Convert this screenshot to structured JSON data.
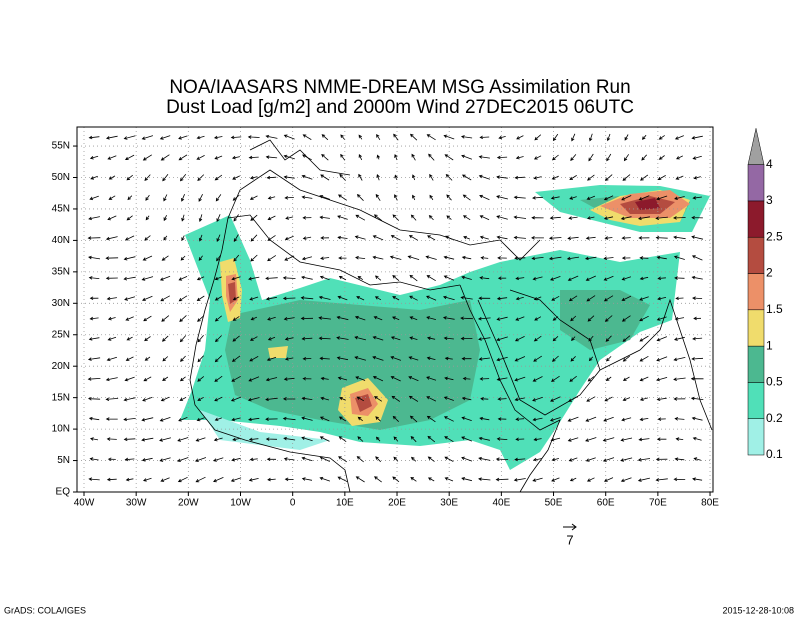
{
  "header": {
    "title_line1": "NOA/IAASARS NMME-DREAM MSG Assimilation Run",
    "title_line2": "Dust Load [g/m2] and 2000m Wind 27DEC2015 06UTC"
  },
  "map": {
    "lon_ticks": [
      {
        "value": -40,
        "label": "40W"
      },
      {
        "value": -30,
        "label": "30W"
      },
      {
        "value": -20,
        "label": "20W"
      },
      {
        "value": -10,
        "label": "10W"
      },
      {
        "value": 0,
        "label": "0"
      },
      {
        "value": 10,
        "label": "10E"
      },
      {
        "value": 20,
        "label": "20E"
      },
      {
        "value": 30,
        "label": "30E"
      },
      {
        "value": 40,
        "label": "40E"
      },
      {
        "value": 50,
        "label": "50E"
      },
      {
        "value": 60,
        "label": "60E"
      },
      {
        "value": 70,
        "label": "70E"
      },
      {
        "value": 80,
        "label": "80E"
      }
    ],
    "lat_ticks": [
      {
        "value": 0,
        "label": "EQ"
      },
      {
        "value": 5,
        "label": "5N"
      },
      {
        "value": 10,
        "label": "10N"
      },
      {
        "value": 15,
        "label": "15N"
      },
      {
        "value": 20,
        "label": "20N"
      },
      {
        "value": 25,
        "label": "25N"
      },
      {
        "value": 30,
        "label": "30N"
      },
      {
        "value": 35,
        "label": "35N"
      },
      {
        "value": 40,
        "label": "40N"
      },
      {
        "value": 45,
        "label": "45N"
      },
      {
        "value": 50,
        "label": "50N"
      },
      {
        "value": 55,
        "label": "55N"
      }
    ],
    "wind_reference": "7"
  },
  "colorbar": {
    "labels": [
      0.1,
      0.2,
      0.5,
      1,
      1.5,
      2,
      2.5,
      3,
      4
    ],
    "colors": [
      "#a0f0e6",
      "#50e0b8",
      "#4cb890",
      "#f0dc6c",
      "#ec9068",
      "#b44c40",
      "#8c1a2c",
      "#9468a4",
      "#a0a0a0"
    ]
  },
  "footer": {
    "left": "GrADS: COLA/IGES",
    "right": "2015-12-28-10:08"
  }
}
